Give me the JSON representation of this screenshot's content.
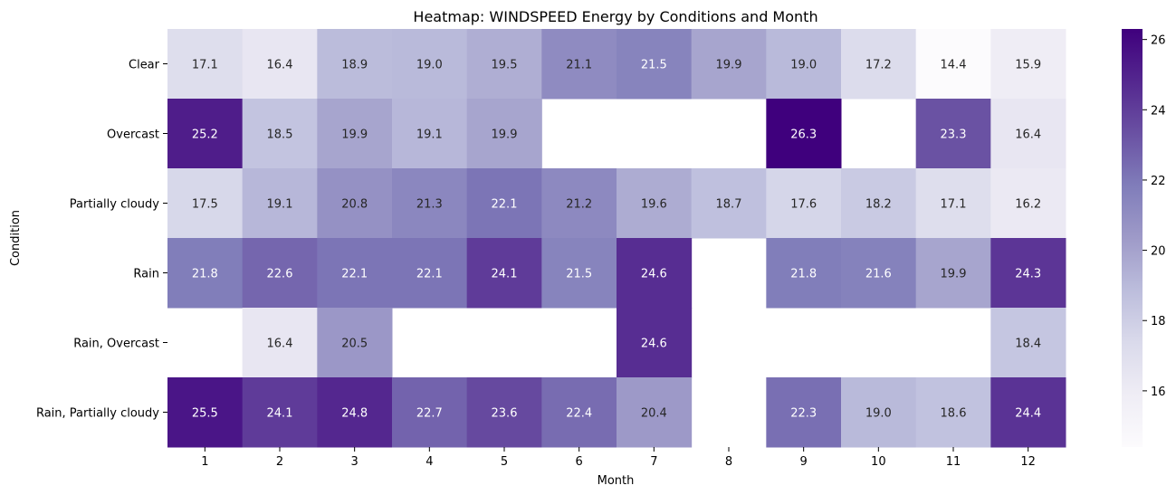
{
  "chart_data": {
    "type": "heatmap",
    "title": "Heatmap: WINDSPEED Energy by Conditions and Month",
    "xlabel": "Month",
    "ylabel": "Condition",
    "x_categories": [
      "1",
      "2",
      "3",
      "4",
      "5",
      "6",
      "7",
      "8",
      "9",
      "10",
      "11",
      "12"
    ],
    "y_categories": [
      "Clear",
      "Overcast",
      "Partially cloudy",
      "Rain",
      "Rain, Overcast",
      "Rain, Partially cloudy"
    ],
    "values": [
      [
        17.1,
        16.4,
        18.9,
        19.0,
        19.5,
        21.1,
        21.5,
        19.9,
        19.0,
        17.2,
        14.4,
        15.9
      ],
      [
        25.2,
        18.5,
        19.9,
        19.1,
        19.9,
        null,
        null,
        null,
        26.3,
        null,
        23.3,
        16.4
      ],
      [
        17.5,
        19.1,
        20.8,
        21.3,
        22.1,
        21.2,
        19.6,
        18.7,
        17.6,
        18.2,
        17.1,
        16.2
      ],
      [
        21.8,
        22.6,
        22.1,
        22.1,
        24.1,
        21.5,
        24.6,
        null,
        21.8,
        21.6,
        19.9,
        24.3
      ],
      [
        null,
        16.4,
        20.5,
        null,
        null,
        null,
        24.6,
        null,
        null,
        null,
        null,
        18.4
      ],
      [
        25.5,
        24.1,
        24.8,
        22.7,
        23.6,
        22.4,
        20.4,
        null,
        22.3,
        19.0,
        18.6,
        24.4
      ]
    ],
    "colorbar": {
      "min": 14.4,
      "max": 26.3,
      "ticks": [
        16,
        18,
        20,
        22,
        24,
        26
      ]
    },
    "colormap": "Purples",
    "colors": {
      "low": "#fcfbfd",
      "high": "#3f007d"
    }
  }
}
